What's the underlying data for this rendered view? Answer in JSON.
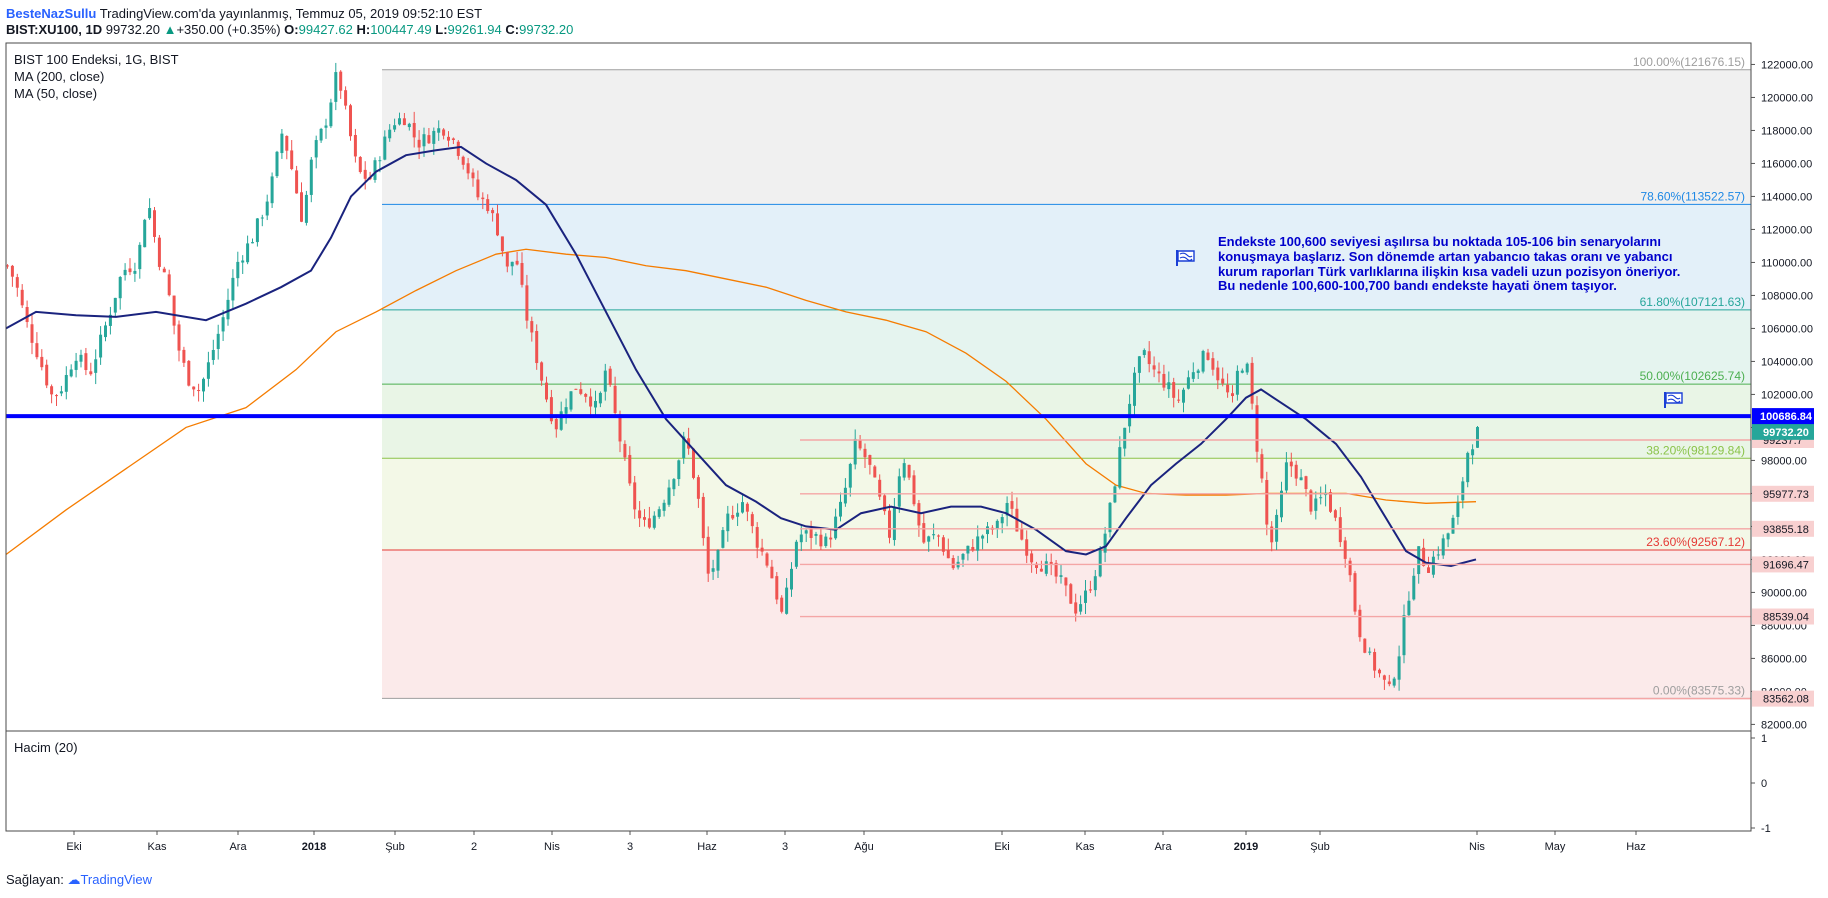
{
  "header": {
    "author": "BesteNazSullu",
    "published": "TradingView.com'da yayınlanmış, Temmuz 05, 2019 09:52:10 EST",
    "symbol": "BIST:XU100, 1D",
    "last": "99732.20",
    "change": "+350.00 (+0.35%)",
    "o_label": "O:",
    "o_value": "99427.62",
    "h_label": "H:",
    "h_value": "100447.49",
    "l_label": "L:",
    "l_value": "99261.94",
    "c_label": "C:",
    "c_value": "99732.20"
  },
  "legend": {
    "series_title": "BIST 100 Endeksi, 1G, BIST",
    "ma200": "MA (200, close)",
    "ma50": "MA (50, close)",
    "volume": "Hacim (20)"
  },
  "annotation": {
    "lines": [
      "Endekste 100,600 seviyesi aşılırsa bu noktada 105-106 bin senaryolarını",
      "konuşmaya başlarız. Son dönemde artan yabancıo takas oranı ve yabancı",
      "kurum raporları Türk varlıklarına ilişkin kısa vadeli uzun pozisyon öneriyor.",
      "Bu nedenle 100,600-100,700 bandı endekste hayati önem taşıyor."
    ]
  },
  "footer": {
    "prefix": "Sağlayan:",
    "brand": "TradingView"
  },
  "colors": {
    "up": "#26a69a",
    "down": "#ef5350",
    "ma50": "#1a237e",
    "ma200": "#f57c00",
    "hline": "#0000ff",
    "annotation": "#0000cc"
  },
  "chart_data": {
    "type": "candlestick",
    "title": "BIST 100 Endeksi, 1G, BIST",
    "ylim": [
      81600,
      123300
    ],
    "y_ticks": [
      82000,
      84000,
      86000,
      88000,
      90000,
      92000,
      94000,
      96000,
      98000,
      100000,
      102000,
      104000,
      106000,
      108000,
      110000,
      112000,
      114000,
      116000,
      118000,
      120000,
      122000
    ],
    "x_labels": [
      "Eki",
      "Kas",
      "Ara",
      "2018",
      "Şub",
      "2",
      "Nis",
      "3",
      "Haz",
      "3",
      "Ağu",
      "Eki",
      "Kas",
      "Ara",
      "2019",
      "Şub",
      "Nis",
      "May",
      "Haz"
    ],
    "x_labels_bold": [
      "2018",
      "2019"
    ],
    "close_path": [
      [
        0,
        109800
      ],
      [
        8,
        108800
      ],
      [
        18,
        106500
      ],
      [
        30,
        104500
      ],
      [
        45,
        101800
      ],
      [
        55,
        102500
      ],
      [
        68,
        104500
      ],
      [
        82,
        103200
      ],
      [
        100,
        106500
      ],
      [
        115,
        109500
      ],
      [
        130,
        110000
      ],
      [
        140,
        114000
      ],
      [
        150,
        110500
      ],
      [
        160,
        108500
      ],
      [
        170,
        105000
      ],
      [
        180,
        103000
      ],
      [
        192,
        102200
      ],
      [
        202,
        104000
      ],
      [
        215,
        106500
      ],
      [
        230,
        110000
      ],
      [
        245,
        111500
      ],
      [
        258,
        113500
      ],
      [
        265,
        115000
      ],
      [
        275,
        118000
      ],
      [
        285,
        115500
      ],
      [
        295,
        112500
      ],
      [
        305,
        116500
      ],
      [
        318,
        118500
      ],
      [
        330,
        121600
      ],
      [
        340,
        118500
      ],
      [
        350,
        115500
      ],
      [
        362,
        115000
      ],
      [
        375,
        117000
      ],
      [
        385,
        118500
      ],
      [
        398,
        118800
      ],
      [
        410,
        117200
      ],
      [
        425,
        117800
      ],
      [
        435,
        118200
      ],
      [
        445,
        117500
      ],
      [
        458,
        116000
      ],
      [
        470,
        114000
      ],
      [
        480,
        113500
      ],
      [
        490,
        112000
      ],
      [
        500,
        109500
      ],
      [
        508,
        110500
      ],
      [
        518,
        107000
      ],
      [
        528,
        104500
      ],
      [
        538,
        102000
      ],
      [
        548,
        100000
      ],
      [
        558,
        101500
      ],
      [
        568,
        102500
      ],
      [
        580,
        102000
      ],
      [
        590,
        101000
      ],
      [
        598,
        103500
      ],
      [
        605,
        101500
      ],
      [
        615,
        98500
      ],
      [
        625,
        95500
      ],
      [
        635,
        94000
      ],
      [
        645,
        94500
      ],
      [
        655,
        95500
      ],
      [
        668,
        97500
      ],
      [
        678,
        99500
      ],
      [
        690,
        96000
      ],
      [
        700,
        91000
      ],
      [
        710,
        92000
      ],
      [
        720,
        94500
      ],
      [
        735,
        95500
      ],
      [
        750,
        93000
      ],
      [
        762,
        91500
      ],
      [
        775,
        88500
      ],
      [
        790,
        93500
      ],
      [
        805,
        93500
      ],
      [
        820,
        93000
      ],
      [
        835,
        95500
      ],
      [
        848,
        99000
      ],
      [
        860,
        98000
      ],
      [
        870,
        96000
      ],
      [
        882,
        93500
      ],
      [
        895,
        98500
      ],
      [
        905,
        96000
      ],
      [
        915,
        93000
      ],
      [
        930,
        93500
      ],
      [
        945,
        91500
      ],
      [
        960,
        92500
      ],
      [
        975,
        93500
      ],
      [
        990,
        94000
      ],
      [
        1000,
        95500
      ],
      [
        1012,
        93500
      ],
      [
        1025,
        92000
      ],
      [
        1040,
        91500
      ],
      [
        1055,
        90500
      ],
      [
        1068,
        89000
      ],
      [
        1080,
        90000
      ],
      [
        1092,
        92000
      ],
      [
        1104,
        95500
      ],
      [
        1115,
        99500
      ],
      [
        1125,
        102500
      ],
      [
        1135,
        104500
      ],
      [
        1145,
        103500
      ],
      [
        1160,
        102500
      ],
      [
        1170,
        101500
      ],
      [
        1185,
        103500
      ],
      [
        1200,
        104500
      ],
      [
        1215,
        102500
      ],
      [
        1225,
        101500
      ],
      [
        1232,
        104000
      ],
      [
        1240,
        103500
      ],
      [
        1248,
        99500
      ],
      [
        1255,
        96500
      ],
      [
        1262,
        92500
      ],
      [
        1270,
        94500
      ],
      [
        1280,
        98000
      ],
      [
        1292,
        97000
      ],
      [
        1305,
        95000
      ],
      [
        1318,
        96000
      ],
      [
        1330,
        94000
      ],
      [
        1340,
        92000
      ],
      [
        1350,
        88000
      ],
      [
        1362,
        86000
      ],
      [
        1372,
        85000
      ],
      [
        1382,
        84000
      ],
      [
        1392,
        86500
      ],
      [
        1400,
        89500
      ],
      [
        1410,
        92500
      ],
      [
        1420,
        91500
      ],
      [
        1430,
        92500
      ],
      [
        1440,
        93500
      ],
      [
        1450,
        95000
      ],
      [
        1460,
        98500
      ],
      [
        1470,
        99700
      ]
    ],
    "ma50_path": [
      [
        0,
        106000
      ],
      [
        30,
        107000
      ],
      [
        70,
        106800
      ],
      [
        110,
        106700
      ],
      [
        150,
        107000
      ],
      [
        200,
        106500
      ],
      [
        240,
        107500
      ],
      [
        275,
        108500
      ],
      [
        305,
        109500
      ],
      [
        325,
        111500
      ],
      [
        345,
        114000
      ],
      [
        370,
        115500
      ],
      [
        400,
        116500
      ],
      [
        430,
        116800
      ],
      [
        455,
        117000
      ],
      [
        480,
        116000
      ],
      [
        510,
        115000
      ],
      [
        540,
        113500
      ],
      [
        570,
        110500
      ],
      [
        600,
        107000
      ],
      [
        630,
        103500
      ],
      [
        660,
        100500
      ],
      [
        690,
        98500
      ],
      [
        720,
        96500
      ],
      [
        750,
        95500
      ],
      [
        775,
        94500
      ],
      [
        800,
        94000
      ],
      [
        830,
        93800
      ],
      [
        855,
        94800
      ],
      [
        885,
        95200
      ],
      [
        915,
        94800
      ],
      [
        945,
        95200
      ],
      [
        975,
        95200
      ],
      [
        1000,
        94800
      ],
      [
        1030,
        93800
      ],
      [
        1060,
        92500
      ],
      [
        1080,
        92300
      ],
      [
        1100,
        92800
      ],
      [
        1120,
        94500
      ],
      [
        1145,
        96500
      ],
      [
        1170,
        97800
      ],
      [
        1195,
        99000
      ],
      [
        1220,
        100500
      ],
      [
        1240,
        101800
      ],
      [
        1255,
        102300
      ],
      [
        1275,
        101500
      ],
      [
        1300,
        100500
      ],
      [
        1330,
        99000
      ],
      [
        1355,
        97000
      ],
      [
        1380,
        94500
      ],
      [
        1400,
        92500
      ],
      [
        1420,
        91800
      ],
      [
        1445,
        91600
      ],
      [
        1470,
        92000
      ]
    ],
    "ma200_path": [
      [
        0,
        92300
      ],
      [
        60,
        95000
      ],
      [
        120,
        97500
      ],
      [
        180,
        100000
      ],
      [
        240,
        101200
      ],
      [
        290,
        103500
      ],
      [
        330,
        105800
      ],
      [
        370,
        107000
      ],
      [
        410,
        108300
      ],
      [
        450,
        109500
      ],
      [
        490,
        110500
      ],
      [
        520,
        110800
      ],
      [
        560,
        110500
      ],
      [
        600,
        110300
      ],
      [
        640,
        109800
      ],
      [
        680,
        109500
      ],
      [
        720,
        109000
      ],
      [
        760,
        108500
      ],
      [
        800,
        107700
      ],
      [
        840,
        107000
      ],
      [
        880,
        106500
      ],
      [
        920,
        105800
      ],
      [
        960,
        104500
      ],
      [
        1000,
        102800
      ],
      [
        1040,
        100500
      ],
      [
        1080,
        97800
      ],
      [
        1110,
        96500
      ],
      [
        1140,
        96000
      ],
      [
        1180,
        95900
      ],
      [
        1220,
        95900
      ],
      [
        1260,
        96000
      ],
      [
        1300,
        96000
      ],
      [
        1340,
        96000
      ],
      [
        1380,
        95600
      ],
      [
        1420,
        95400
      ],
      [
        1470,
        95500
      ]
    ],
    "fibonacci": [
      {
        "label": "100.00%(121676.15)",
        "value": 121676.15,
        "color": "#9e9e9e"
      },
      {
        "label": "78.60%(113522.57)",
        "value": 113522.57,
        "color": "#1e88e5"
      },
      {
        "label": "61.80%(107121.63)",
        "value": 107121.63,
        "color": "#26a69a"
      },
      {
        "label": "50.00%(102625.74)",
        "value": 102625.74,
        "color": "#4caf50"
      },
      {
        "label": "38.20%(98129.84)",
        "value": 98129.84,
        "color": "#8bc34a"
      },
      {
        "label": "23.60%(92567.12)",
        "value": 92567.12,
        "color": "#e53935"
      },
      {
        "label": "0.00%(83575.33)",
        "value": 83575.33,
        "color": "#9e9e9e"
      }
    ],
    "fib_bands": [
      {
        "top": 121676.15,
        "bottom": 113522.57,
        "color": "#f0f0f0"
      },
      {
        "top": 113522.57,
        "bottom": 107121.63,
        "color": "#e3f0f9"
      },
      {
        "top": 107121.63,
        "bottom": 102625.74,
        "color": "#e5f4ef"
      },
      {
        "top": 102625.74,
        "bottom": 98129.84,
        "color": "#e9f5e6"
      },
      {
        "top": 98129.84,
        "bottom": 92567.12,
        "color": "#f3f8e7"
      },
      {
        "top": 92567.12,
        "bottom": 83575.33,
        "color": "#fbeaea"
      }
    ],
    "horizontal_level": {
      "label": "100686.84",
      "value": 100686.84
    },
    "support_levels": [
      {
        "label": "99237.7",
        "value": 99237.7
      },
      {
        "label": "95977.73",
        "value": 95977.73
      },
      {
        "label": "93855.18",
        "value": 93855.18
      },
      {
        "label": "91696.47",
        "value": 91696.47
      },
      {
        "label": "88539.04",
        "value": 88539.04
      },
      {
        "label": "83562.08",
        "value": 83562.08
      }
    ],
    "last_price": {
      "label": "99732.20",
      "value": 99732.2
    },
    "volume_axis": {
      "ticks": [
        "1",
        "0",
        "-1"
      ]
    }
  }
}
